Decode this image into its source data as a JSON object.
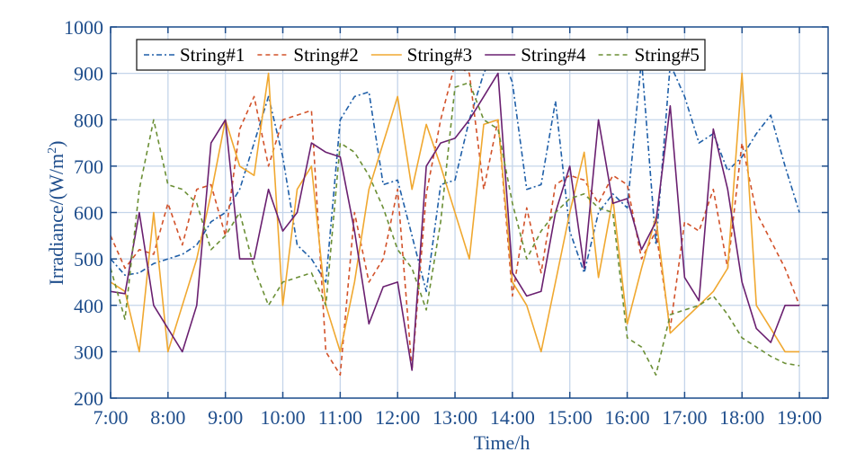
{
  "chart_data": {
    "type": "line",
    "title": "",
    "xlabel": "Time/h",
    "ylabel": "Irradiance/(W/m",
    "ylabel_sup": "2",
    "ylabel_suffix": ")",
    "xlim": [
      7,
      19.5
    ],
    "ylim": [
      200,
      1000
    ],
    "xticks": [
      7,
      8,
      9,
      10,
      11,
      12,
      13,
      14,
      15,
      16,
      17,
      18,
      19
    ],
    "xtick_labels": [
      "7:00",
      "8:00",
      "9:00",
      "10:00",
      "11:00",
      "12:00",
      "13:00",
      "14:00",
      "15:00",
      "16:00",
      "17:00",
      "18:00",
      "19:00"
    ],
    "yticks": [
      200,
      300,
      400,
      500,
      600,
      700,
      800,
      900,
      1000
    ],
    "ytick_labels": [
      "200",
      "300",
      "400",
      "500",
      "600",
      "700",
      "800",
      "900",
      "1000"
    ],
    "grid": true,
    "legend_position": "top",
    "x": [
      7.0,
      7.25,
      7.5,
      7.75,
      8.0,
      8.25,
      8.5,
      8.75,
      9.0,
      9.25,
      9.5,
      9.75,
      10.0,
      10.25,
      10.5,
      10.75,
      11.0,
      11.25,
      11.5,
      11.75,
      12.0,
      12.25,
      12.5,
      12.75,
      13.0,
      13.25,
      13.5,
      13.75,
      14.0,
      14.25,
      14.5,
      14.75,
      15.0,
      15.25,
      15.5,
      15.75,
      16.0,
      16.25,
      16.5,
      16.75,
      17.0,
      17.25,
      17.5,
      17.75,
      18.0,
      18.25,
      18.5,
      18.75,
      19.0
    ],
    "series": [
      {
        "name": "String#1",
        "color": "#1f5fa8",
        "dash": "6 3 2 3",
        "values": [
          500,
          465,
          470,
          490,
          500,
          510,
          530,
          580,
          600,
          650,
          750,
          850,
          720,
          530,
          500,
          450,
          800,
          850,
          860,
          660,
          670,
          550,
          430,
          660,
          670,
          800,
          900,
          960,
          880,
          650,
          660,
          840,
          560,
          470,
          600,
          640,
          610,
          930,
          530,
          920,
          850,
          750,
          770,
          690,
          720,
          770,
          810,
          700,
          600
        ]
      },
      {
        "name": "String#2",
        "color": "#d2522a",
        "dash": "5 4",
        "values": [
          550,
          480,
          520,
          510,
          620,
          530,
          650,
          660,
          550,
          780,
          850,
          700,
          800,
          810,
          820,
          300,
          250,
          600,
          450,
          500,
          650,
          260,
          640,
          800,
          920,
          900,
          650,
          800,
          420,
          610,
          470,
          660,
          680,
          670,
          620,
          680,
          660,
          500,
          560,
          350,
          580,
          560,
          650,
          480,
          750,
          600,
          540,
          480,
          400
        ]
      },
      {
        "name": "String#3",
        "color": "#f0a830",
        "dash": "",
        "values": [
          450,
          430,
          300,
          600,
          300,
          400,
          500,
          640,
          800,
          700,
          680,
          900,
          400,
          650,
          700,
          400,
          300,
          450,
          650,
          750,
          850,
          650,
          790,
          700,
          600,
          500,
          790,
          800,
          450,
          400,
          300,
          450,
          600,
          730,
          460,
          630,
          360,
          480,
          590,
          340,
          370,
          400,
          430,
          480,
          900,
          400,
          350,
          300,
          300
        ]
      },
      {
        "name": "String#4",
        "color": "#6a2070",
        "dash": "",
        "values": [
          430,
          425,
          600,
          400,
          350,
          300,
          400,
          750,
          800,
          500,
          500,
          650,
          560,
          600,
          750,
          730,
          720,
          560,
          360,
          440,
          450,
          260,
          700,
          750,
          760,
          800,
          850,
          900,
          470,
          420,
          430,
          600,
          700,
          480,
          800,
          620,
          630,
          520,
          580,
          830,
          460,
          410,
          780,
          650,
          450,
          350,
          320,
          400,
          400
        ]
      },
      {
        "name": "String#5",
        "color": "#6b8f35",
        "dash": "5 4",
        "values": [
          480,
          370,
          650,
          800,
          660,
          650,
          620,
          520,
          550,
          600,
          480,
          400,
          450,
          460,
          470,
          400,
          750,
          730,
          680,
          610,
          520,
          480,
          390,
          580,
          870,
          880,
          800,
          780,
          620,
          500,
          560,
          600,
          630,
          640,
          610,
          600,
          330,
          310,
          250,
          380,
          390,
          400,
          420,
          380,
          330,
          310,
          290,
          275,
          270
        ]
      }
    ]
  }
}
